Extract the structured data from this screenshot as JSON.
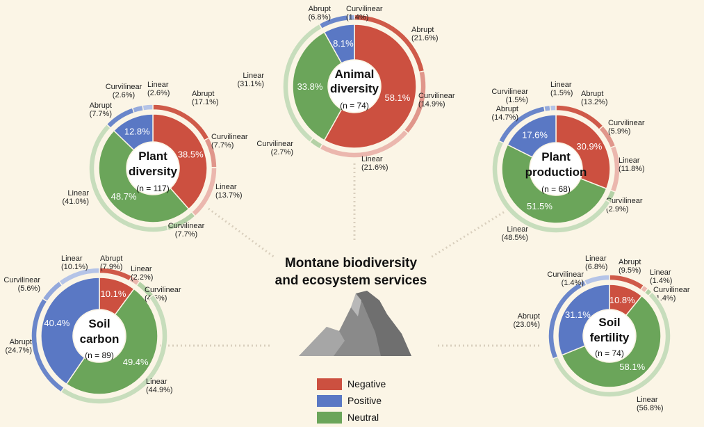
{
  "center_title": [
    "Montane biodiversity",
    "and ecosystem services"
  ],
  "legend": [
    {
      "label": "Negative",
      "color": "#cc5040"
    },
    {
      "label": "Positive",
      "color": "#5a78c4"
    },
    {
      "label": "Neutral",
      "color": "#6ba55a"
    }
  ],
  "chart_data": [
    {
      "type": "pie",
      "title_lines": [
        "Animal",
        "diversity"
      ],
      "n_label": "(n = 74)",
      "inner": [
        {
          "name": "Negative",
          "value": 58.1,
          "label": "58.1%"
        },
        {
          "name": "Neutral",
          "value": 33.8,
          "label": "33.8%"
        },
        {
          "name": "Positive",
          "value": 8.1,
          "label": "8.1%"
        }
      ],
      "outer": [
        {
          "group": "Negative",
          "name": "Abrupt",
          "value": 21.6,
          "label": "(21.6%)"
        },
        {
          "group": "Negative",
          "name": "Curvilinear",
          "value": 14.9,
          "label": "(14.9%)"
        },
        {
          "group": "Negative",
          "name": "Linear",
          "value": 21.6,
          "label": "(21.6%)"
        },
        {
          "group": "Neutral",
          "name": "Curvilinear",
          "value": 2.7,
          "label": "(2.7%)"
        },
        {
          "group": "Neutral",
          "name": "Linear",
          "value": 31.1,
          "label": "(31.1%)"
        },
        {
          "group": "Positive",
          "name": "Abrupt",
          "value": 6.8,
          "label": "(6.8%)"
        },
        {
          "group": "Positive",
          "name": "Curvilinear",
          "value": 1.4,
          "label": "(1.4%)"
        }
      ]
    },
    {
      "type": "pie",
      "title_lines": [
        "Plant",
        "diversity"
      ],
      "n_label": "(n = 117)",
      "inner": [
        {
          "name": "Negative",
          "value": 38.5,
          "label": "38.5%"
        },
        {
          "name": "Neutral",
          "value": 48.7,
          "label": "48.7%"
        },
        {
          "name": "Positive",
          "value": 12.8,
          "label": "12.8%"
        }
      ],
      "outer": [
        {
          "group": "Negative",
          "name": "Abrupt",
          "value": 17.1,
          "label": "(17.1%)"
        },
        {
          "group": "Negative",
          "name": "Curvilinear",
          "value": 7.7,
          "label": "(7.7%)"
        },
        {
          "group": "Negative",
          "name": "Linear",
          "value": 13.7,
          "label": "(13.7%)"
        },
        {
          "group": "Neutral",
          "name": "Curvilinear",
          "value": 7.7,
          "label": "(7.7%)"
        },
        {
          "group": "Neutral",
          "name": "Linear",
          "value": 41.0,
          "label": "(41.0%)"
        },
        {
          "group": "Positive",
          "name": "Abrupt",
          "value": 7.7,
          "label": "(7.7%)"
        },
        {
          "group": "Positive",
          "name": "Curvilinear",
          "value": 2.6,
          "label": "(2.6%)"
        },
        {
          "group": "Positive",
          "name": "Linear",
          "value": 2.6,
          "label": "(2.6%)"
        }
      ]
    },
    {
      "type": "pie",
      "title_lines": [
        "Plant",
        "production"
      ],
      "n_label": "(n = 68)",
      "inner": [
        {
          "name": "Negative",
          "value": 30.9,
          "label": "30.9%"
        },
        {
          "name": "Neutral",
          "value": 51.5,
          "label": "51.5%"
        },
        {
          "name": "Positive",
          "value": 17.6,
          "label": "17.6%"
        }
      ],
      "outer": [
        {
          "group": "Negative",
          "name": "Abrupt",
          "value": 13.2,
          "label": "(13.2%)"
        },
        {
          "group": "Negative",
          "name": "Curvilinear",
          "value": 5.9,
          "label": "(5.9%)"
        },
        {
          "group": "Negative",
          "name": "Linear",
          "value": 11.8,
          "label": "(11.8%)"
        },
        {
          "group": "Neutral",
          "name": "Curvilinear",
          "value": 2.9,
          "label": "(2.9%)"
        },
        {
          "group": "Neutral",
          "name": "Linear",
          "value": 48.5,
          "label": "(48.5%)"
        },
        {
          "group": "Positive",
          "name": "Abrupt",
          "value": 14.7,
          "label": "(14.7%)"
        },
        {
          "group": "Positive",
          "name": "Curvilinear",
          "value": 1.5,
          "label": "(1.5%)"
        },
        {
          "group": "Positive",
          "name": "Linear",
          "value": 1.5,
          "label": "(1.5%)"
        }
      ]
    },
    {
      "type": "pie",
      "title_lines": [
        "Soil",
        "carbon"
      ],
      "n_label": "(n = 89)",
      "inner": [
        {
          "name": "Negative",
          "value": 10.1,
          "label": "10.1%"
        },
        {
          "name": "Neutral",
          "value": 49.4,
          "label": "49.4%"
        },
        {
          "name": "Positive",
          "value": 40.4,
          "label": "40.4%"
        }
      ],
      "outer": [
        {
          "group": "Negative",
          "name": "Abrupt",
          "value": 7.9,
          "label": "(7.9%)"
        },
        {
          "group": "Negative",
          "name": "Linear",
          "value": 2.2,
          "label": "(2.2%)"
        },
        {
          "group": "Neutral",
          "name": "Curvilinear",
          "value": 4.5,
          "label": "(4.5%)"
        },
        {
          "group": "Neutral",
          "name": "Linear",
          "value": 44.9,
          "label": "(44.9%)"
        },
        {
          "group": "Positive",
          "name": "Abrupt",
          "value": 24.7,
          "label": "(24.7%)"
        },
        {
          "group": "Positive",
          "name": "Curvilinear",
          "value": 5.6,
          "label": "(5.6%)"
        },
        {
          "group": "Positive",
          "name": "Linear",
          "value": 10.1,
          "label": "(10.1%)"
        }
      ]
    },
    {
      "type": "pie",
      "title_lines": [
        "Soil",
        "fertility"
      ],
      "n_label": "(n = 74)",
      "inner": [
        {
          "name": "Negative",
          "value": 10.8,
          "label": "10.8%"
        },
        {
          "name": "Neutral",
          "value": 58.1,
          "label": "58.1%"
        },
        {
          "name": "Positive",
          "value": 31.1,
          "label": "31.1%"
        }
      ],
      "outer": [
        {
          "group": "Negative",
          "name": "Abrupt",
          "value": 9.5,
          "label": "(9.5%)"
        },
        {
          "group": "Negative",
          "name": "Linear",
          "value": 1.4,
          "label": "(1.4%)"
        },
        {
          "group": "Neutral",
          "name": "Curvilinear",
          "value": 1.4,
          "label": "(1.4%)"
        },
        {
          "group": "Neutral",
          "name": "Linear",
          "value": 56.8,
          "label": "(56.8%)"
        },
        {
          "group": "Positive",
          "name": "Abrupt",
          "value": 23.0,
          "label": "(23.0%)"
        },
        {
          "group": "Positive",
          "name": "Curvilinear",
          "value": 1.4,
          "label": "(1.4%)"
        },
        {
          "group": "Positive",
          "name": "Linear",
          "value": 6.8,
          "label": "(6.8%)"
        }
      ]
    }
  ]
}
